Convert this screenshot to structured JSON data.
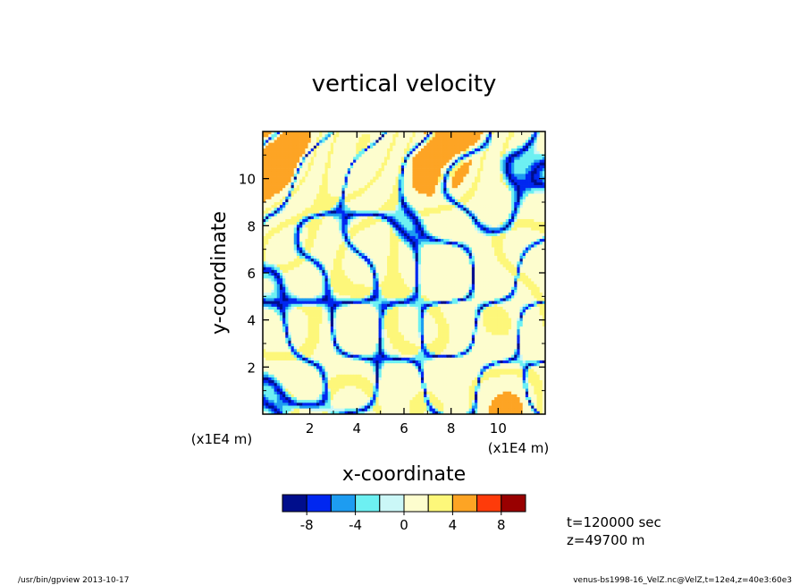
{
  "chart_data": {
    "type": "heatmap",
    "title": "vertical velocity",
    "xlabel": "x-coordinate",
    "ylabel": "y-coordinate",
    "x_unit_label": "(x1E4 m)",
    "y_unit_label": "(x1E4 m)",
    "xlim": [
      0,
      12
    ],
    "ylim": [
      0,
      12
    ],
    "x_ticks": [
      2,
      4,
      6,
      8,
      10
    ],
    "y_ticks": [
      2,
      4,
      6,
      8,
      10
    ],
    "colorbar": {
      "levels": [
        -10,
        -8,
        -6,
        -4,
        -2,
        0,
        2,
        4,
        6,
        8,
        10
      ],
      "tick_labels": [
        "-8",
        "-4",
        "0",
        "4",
        "8"
      ],
      "tick_values": [
        -8,
        -4,
        0,
        4,
        8
      ],
      "colors": [
        "#000e8c",
        "#0027f0",
        "#1d9cf1",
        "#6df0f2",
        "#cbf7f7",
        "#fdfdce",
        "#fdf77a",
        "#fda424",
        "#fe3b0a",
        "#990000"
      ]
    },
    "annotations": [
      "t=120000 sec",
      "z=49700 m"
    ]
  },
  "footer": {
    "left": "/usr/bin/gpview  2013-10-17",
    "right": "venus-bs1998-16_VelZ.nc@VelZ,t=12e4,z=40e3:60e3"
  }
}
